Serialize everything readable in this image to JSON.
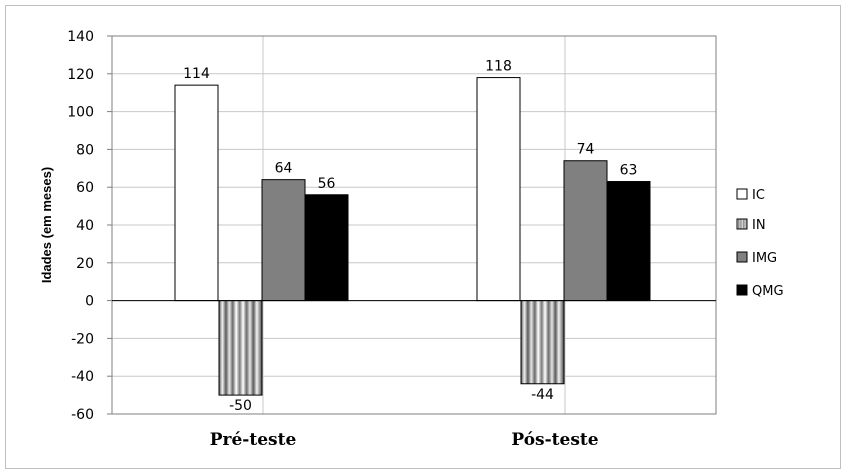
{
  "chart_data": {
    "type": "bar",
    "title": "",
    "xlabel": "",
    "ylabel": "Idades (em meses)",
    "ylim": [
      -60,
      140
    ],
    "yticks": [
      140,
      120,
      100,
      80,
      60,
      40,
      20,
      0,
      -20,
      -40,
      -60
    ],
    "categories": [
      "Pré-teste",
      "Pós-teste"
    ],
    "series": [
      {
        "name": "IC",
        "values": [
          114,
          118
        ],
        "color": "#ffffff",
        "style": "solid"
      },
      {
        "name": "IN",
        "values": [
          -50,
          -44
        ],
        "color": "#8c8c8c",
        "style": "cylinder-stripes"
      },
      {
        "name": "IMG",
        "values": [
          64,
          74
        ],
        "color": "#808080",
        "style": "solid"
      },
      {
        "name": "QMG",
        "values": [
          56,
          63
        ],
        "color": "#000000",
        "style": "solid"
      }
    ],
    "data_labels": [
      [
        "114",
        "-50",
        "64",
        "56"
      ],
      [
        "118",
        "-44",
        "74",
        "63"
      ]
    ],
    "grid": true,
    "legend": "right"
  }
}
